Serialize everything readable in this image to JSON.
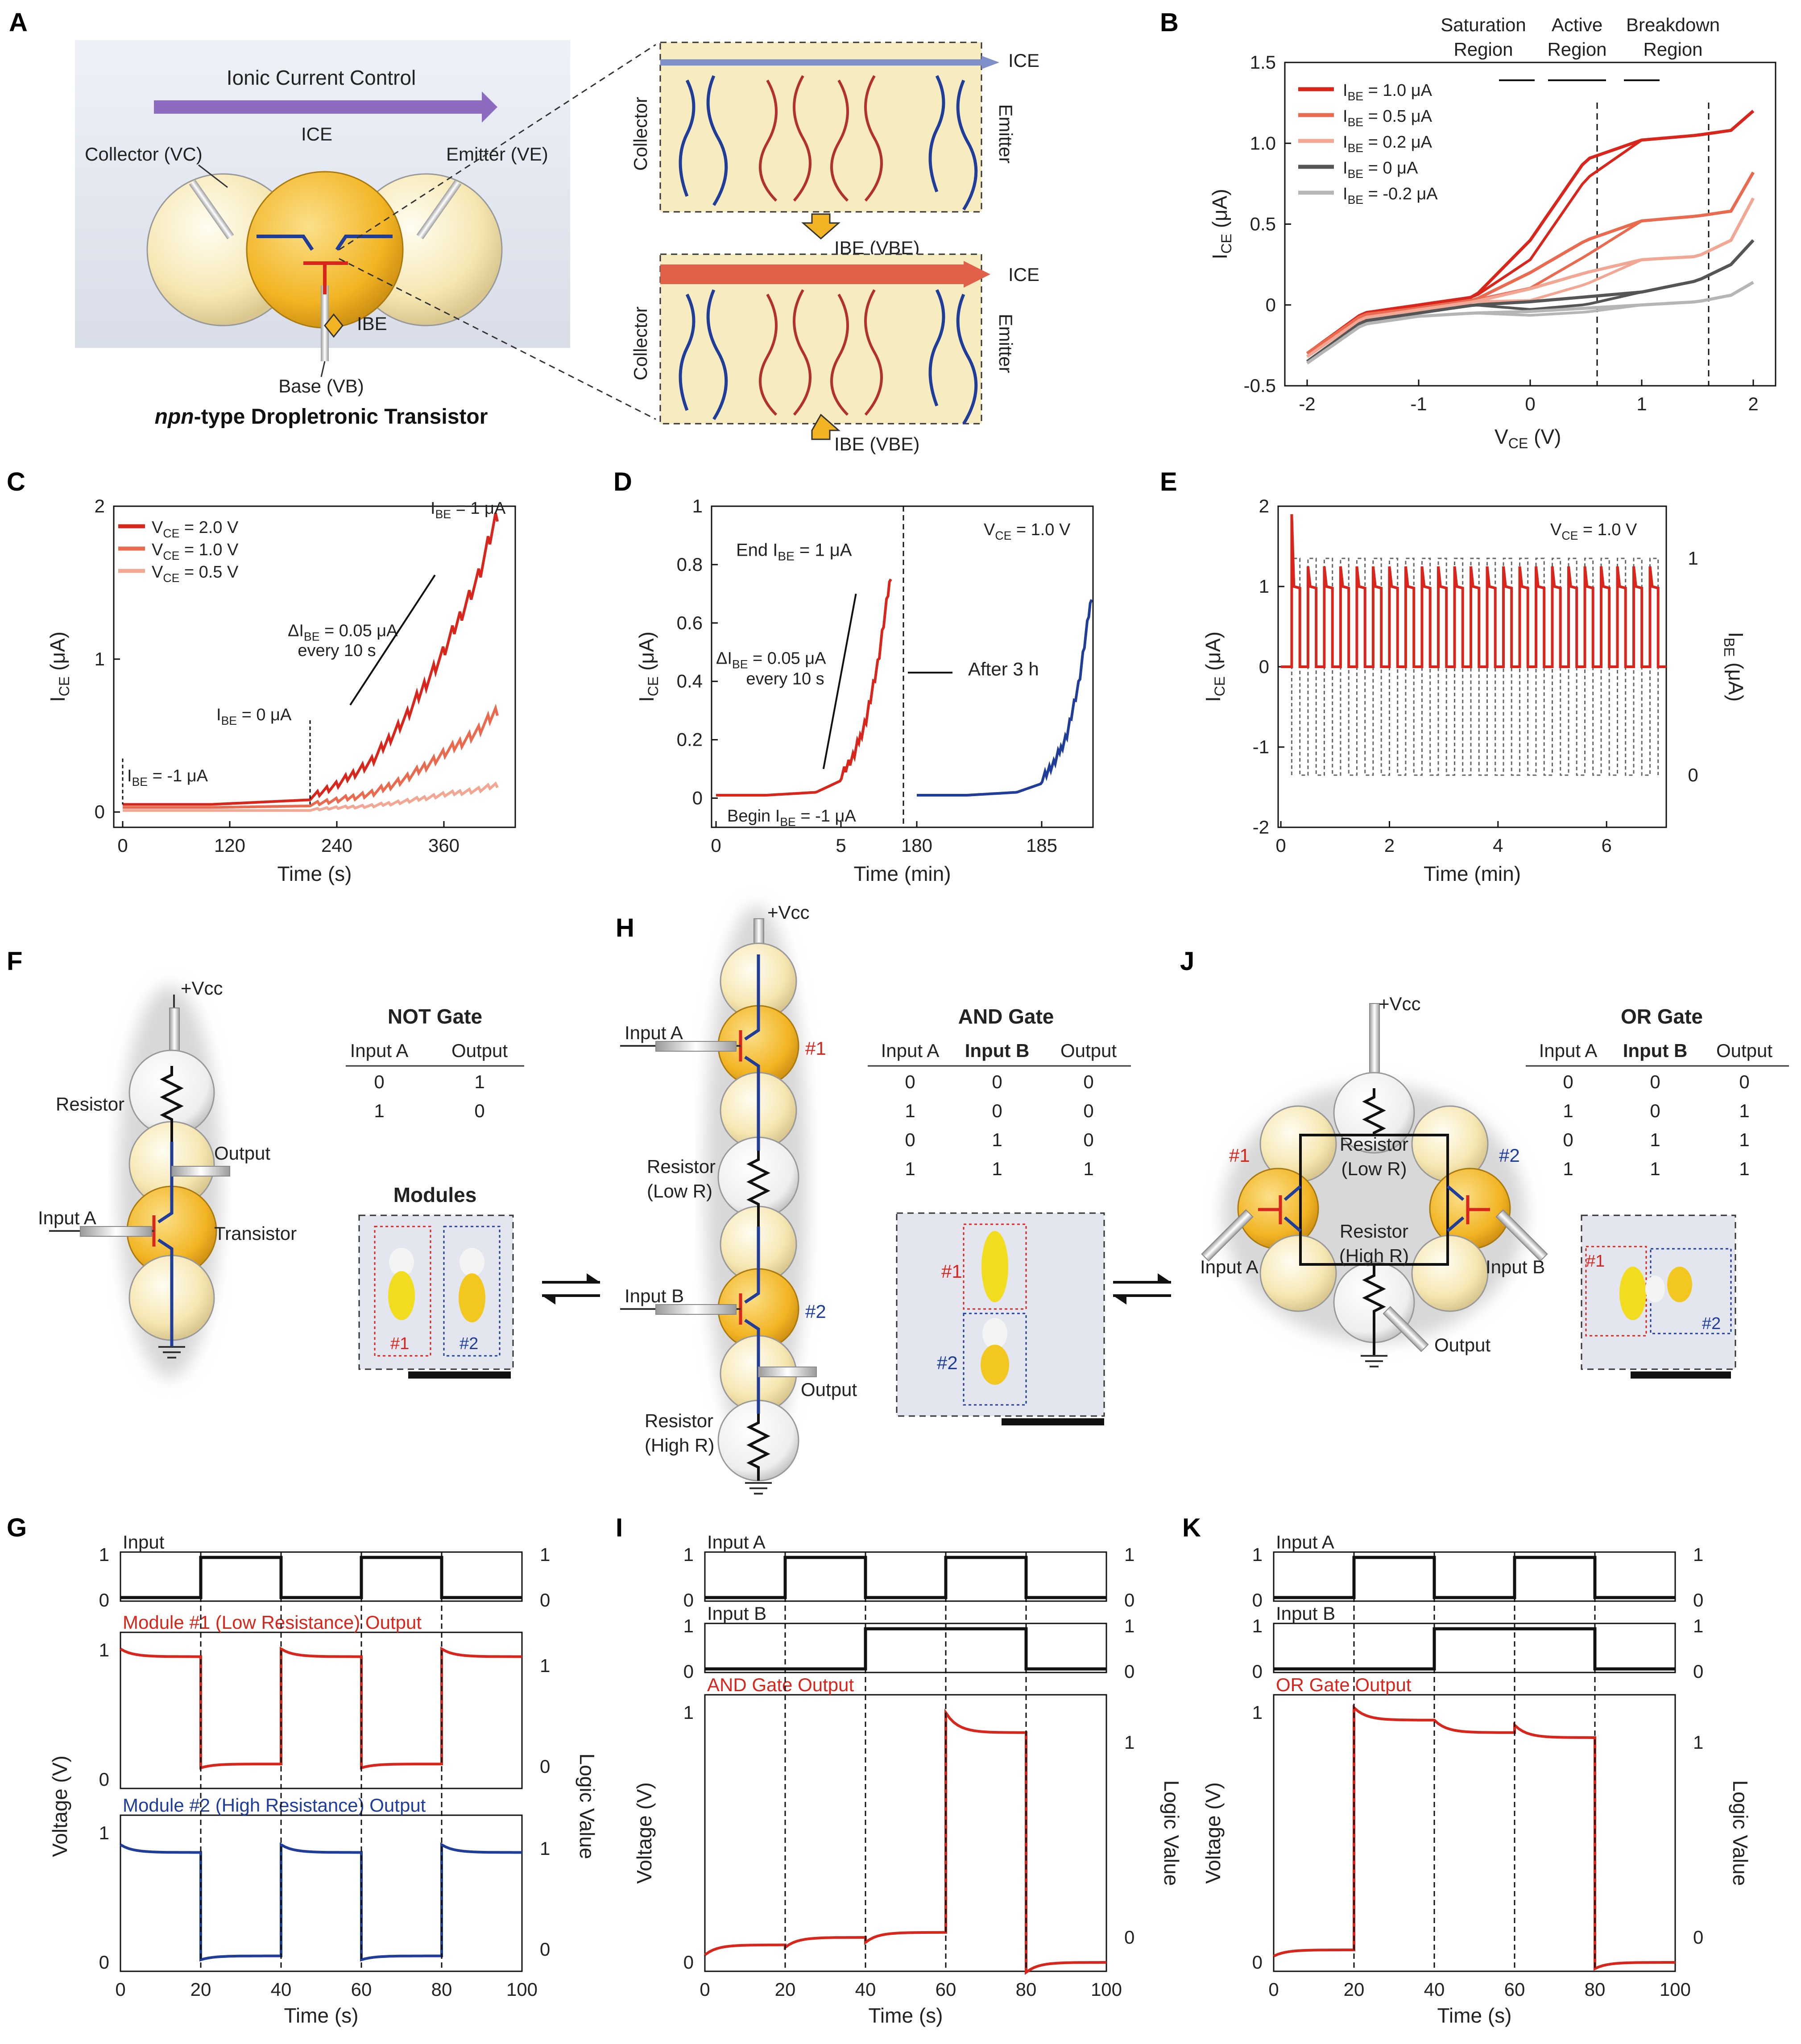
{
  "panel_labels": [
    "A",
    "B",
    "C",
    "D",
    "E",
    "F",
    "G",
    "H",
    "I",
    "J",
    "K"
  ],
  "panelA": {
    "banner": "Ionic Current Control",
    "ice": "ICE",
    "collector": "Collector (VC)",
    "emitter": "Emitter (VE)",
    "ibe": "IBE",
    "base": "Base (VB)",
    "caption_italic": "npn",
    "caption_rest": "-type Dropletronic Transistor",
    "zoom_collector": "Collector",
    "zoom_emitter": "Emitter",
    "zoom_ice": "ICE",
    "zoom_ibe": "IBE (VBE)"
  },
  "colors": {
    "dark_red": "#d9261c",
    "mid_red": "#ea6a4f",
    "light_red": "#f2a794",
    "dark_gray": "#555555",
    "light_gray": "#b5b5b5",
    "blue": "#1f3d99",
    "amber": "#f2b423",
    "cream": "#f7ecc0",
    "panel_gray": "#dfe3ea"
  },
  "chart_data": [
    {
      "panel": "B",
      "type": "line",
      "xlabel": "VCE (V)",
      "ylabel": "ICE (μA)",
      "xlim": [
        -2.2,
        2.2
      ],
      "ylim": [
        -0.5,
        1.5
      ],
      "xticks": [
        "-2",
        "-1",
        "0",
        "1",
        "2"
      ],
      "yticks": [
        "-0.5",
        "0",
        "0.5",
        "1.0",
        "1.5"
      ],
      "regions": [
        "Saturation Region",
        "Active Region",
        "Breakdown Region"
      ],
      "region_bounds": [
        0.6,
        1.6
      ],
      "legend": [
        "IBE = 1.0 μA",
        "IBE = 0.5 μA",
        "IBE = 0.2 μA",
        "IBE = 0 μA",
        "IBE = -0.2 μA"
      ],
      "series": [
        {
          "name": "IBE = 1.0 μA",
          "x": [
            -2,
            -1.5,
            -1,
            -0.5,
            0,
            0.5,
            1,
            1.5,
            1.8,
            2
          ],
          "y": [
            -0.3,
            -0.05,
            0.0,
            0.05,
            0.4,
            0.9,
            1.02,
            1.05,
            1.08,
            1.2
          ]
        },
        {
          "name": "IBE = 0.5 μA",
          "x": [
            -2,
            -1.5,
            -1,
            -0.5,
            0,
            0.5,
            1,
            1.5,
            1.8,
            2
          ],
          "y": [
            -0.3,
            -0.06,
            -0.02,
            0.03,
            0.2,
            0.4,
            0.52,
            0.55,
            0.58,
            0.82
          ]
        },
        {
          "name": "IBE = 0.2 μA",
          "x": [
            -2,
            -1.5,
            -1,
            -0.5,
            0,
            0.5,
            1,
            1.5,
            1.8,
            2
          ],
          "y": [
            -0.32,
            -0.08,
            -0.03,
            0.02,
            0.1,
            0.2,
            0.28,
            0.3,
            0.4,
            0.66
          ]
        },
        {
          "name": "IBE = 0 μA",
          "x": [
            -2,
            -1.5,
            -1,
            -0.5,
            0,
            0.5,
            1,
            1.5,
            1.8,
            2
          ],
          "y": [
            -0.35,
            -0.1,
            -0.05,
            0.0,
            0.02,
            0.05,
            0.08,
            0.15,
            0.25,
            0.4
          ]
        },
        {
          "name": "IBE = -0.2 μA",
          "x": [
            -2,
            -1.5,
            -1,
            -0.5,
            0,
            0.5,
            1,
            1.5,
            1.8,
            2
          ],
          "y": [
            -0.36,
            -0.12,
            -0.07,
            -0.05,
            -0.04,
            -0.02,
            0.0,
            0.02,
            0.06,
            0.14
          ]
        }
      ]
    },
    {
      "panel": "C",
      "type": "line",
      "xlabel": "Time (s)",
      "ylabel": "ICE (μA)",
      "xlim": [
        -10,
        440
      ],
      "ylim": [
        -0.1,
        2.0
      ],
      "xticks": [
        "0",
        "120",
        "240",
        "360"
      ],
      "yticks": [
        "0",
        "1",
        "2"
      ],
      "legend": [
        "VCE = 2.0 V",
        "VCE = 1.0 V",
        "VCE = 0.5 V"
      ],
      "annotations": [
        "IBE = -1 μA",
        "IBE = 0 μA",
        "ΔIBE = 0.05 μA",
        "every 10 s",
        "IBE = 1 μA"
      ],
      "series": [
        {
          "name": "VCE = 2.0 V",
          "x": [
            0,
            100,
            210,
            240,
            280,
            320,
            360,
            400,
            420
          ],
          "y": [
            0.05,
            0.05,
            0.08,
            0.15,
            0.3,
            0.6,
            1.0,
            1.5,
            1.9
          ]
        },
        {
          "name": "VCE = 1.0 V",
          "x": [
            0,
            100,
            210,
            240,
            280,
            320,
            360,
            400,
            420
          ],
          "y": [
            0.03,
            0.03,
            0.04,
            0.06,
            0.1,
            0.2,
            0.35,
            0.5,
            0.63
          ]
        },
        {
          "name": "VCE = 0.5 V",
          "x": [
            0,
            100,
            210,
            240,
            280,
            320,
            360,
            400,
            420
          ],
          "y": [
            0.01,
            0.01,
            0.01,
            0.02,
            0.03,
            0.06,
            0.1,
            0.13,
            0.16
          ]
        }
      ]
    },
    {
      "panel": "D",
      "type": "line",
      "xlabel": "Time (min)",
      "ylabel": "ICE (μA)",
      "ylim": [
        -0.1,
        1.0
      ],
      "xticks": [
        "0",
        "5",
        "180",
        "185"
      ],
      "yticks": [
        "0",
        "0.2",
        "0.4",
        "0.6",
        "0.8",
        "1"
      ],
      "annotations": [
        "VCE = 1.0 V",
        "End IBE = 1 μA",
        "ΔIBE = 0.05 μA",
        "every 10 s",
        "After 3 h",
        "Begin IBE = -1 μA"
      ],
      "series": [
        {
          "name": "before",
          "x": [
            0,
            2,
            4,
            5,
            5.5,
            6,
            6.5,
            7
          ],
          "y": [
            0.01,
            0.01,
            0.02,
            0.06,
            0.12,
            0.25,
            0.45,
            0.75
          ]
        },
        {
          "name": "after 3 h",
          "x": [
            180,
            182,
            184,
            185,
            185.5,
            186,
            186.5,
            187
          ],
          "y": [
            0.01,
            0.01,
            0.02,
            0.05,
            0.1,
            0.2,
            0.38,
            0.68
          ]
        }
      ]
    },
    {
      "panel": "E",
      "type": "line",
      "xlabel": "Time (min)",
      "ylabel": "ICE (μA)",
      "y2label": "IBE (μA)",
      "xlim": [
        -0.05,
        7.1
      ],
      "ylim": [
        -2,
        2
      ],
      "xticks": [
        "0",
        "2",
        "4",
        "6"
      ],
      "yticks": [
        "-2",
        "-1",
        "0",
        "1",
        "2"
      ],
      "y2ticks": [
        "0",
        "1"
      ],
      "annotations": [
        "VCE = 1.0 V"
      ],
      "pulse_period_min": 0.3,
      "pulse_count": 23,
      "spike_first": 1.9,
      "spike_typical": 1.25,
      "plateau": 1.0
    },
    {
      "panel": "G",
      "type": "line",
      "xlabel": "Time (s)",
      "ylabel": "Voltage (V)",
      "y2label": "Logic Value",
      "xlim": [
        0,
        100
      ],
      "xticks": [
        "0",
        "20",
        "40",
        "60",
        "80",
        "100"
      ],
      "titles": [
        "Input",
        "Module #1 (Low Resistance) Output",
        "Module #2 (High Resistance) Output"
      ],
      "input_steps": [
        [
          0,
          0
        ],
        [
          20,
          1
        ],
        [
          40,
          0
        ],
        [
          60,
          1
        ],
        [
          80,
          0
        ],
        [
          100,
          0
        ]
      ],
      "series": [
        {
          "name": "Module #1 (Low Resistance) Output",
          "high": 0.95,
          "low": 0.12
        },
        {
          "name": "Module #2 (High Resistance) Output",
          "high": 0.85,
          "low": 0.05
        }
      ]
    },
    {
      "panel": "I",
      "type": "line",
      "xlabel": "Time (s)",
      "ylabel": "Voltage (V)",
      "y2label": "Logic Value",
      "xlim": [
        0,
        100
      ],
      "xticks": [
        "0",
        "20",
        "40",
        "60",
        "80",
        "100"
      ],
      "titles": [
        "Input A",
        "Input B",
        "AND Gate Output"
      ],
      "inputA_steps": [
        [
          0,
          0
        ],
        [
          20,
          1
        ],
        [
          40,
          0
        ],
        [
          60,
          1
        ],
        [
          80,
          0
        ],
        [
          100,
          0
        ]
      ],
      "inputB_steps": [
        [
          0,
          0
        ],
        [
          40,
          1
        ],
        [
          80,
          0
        ],
        [
          100,
          0
        ]
      ],
      "output_levels": [
        [
          0,
          0.07
        ],
        [
          20,
          0.1
        ],
        [
          40,
          0.12
        ],
        [
          60,
          0.92
        ],
        [
          80,
          0.0
        ],
        [
          100,
          0.08
        ]
      ]
    },
    {
      "panel": "K",
      "type": "line",
      "xlabel": "Time (s)",
      "ylabel": "Voltage (V)",
      "y2label": "Logic Value",
      "xlim": [
        0,
        100
      ],
      "xticks": [
        "0",
        "20",
        "40",
        "60",
        "80",
        "100"
      ],
      "titles": [
        "Input A",
        "Input B",
        "OR Gate Output"
      ],
      "inputA_steps": [
        [
          0,
          0
        ],
        [
          20,
          1
        ],
        [
          40,
          0
        ],
        [
          60,
          1
        ],
        [
          80,
          0
        ],
        [
          100,
          0
        ]
      ],
      "inputB_steps": [
        [
          0,
          0
        ],
        [
          40,
          1
        ],
        [
          80,
          0
        ],
        [
          100,
          0
        ]
      ],
      "output_levels": [
        [
          0,
          0.05
        ],
        [
          20,
          0.97
        ],
        [
          40,
          0.92
        ],
        [
          60,
          0.9
        ],
        [
          80,
          0.0
        ],
        [
          100,
          0.04
        ]
      ]
    }
  ],
  "circuits": {
    "F": {
      "vcc": "+Vcc",
      "resistor": "Resistor",
      "output": "Output",
      "input": "Input A",
      "transistor": "Transistor"
    },
    "H": {
      "vcc": "+Vcc",
      "input_a": "Input A",
      "n1": "#1",
      "res_low": "Resistor",
      "res_low2": "(Low R)",
      "input_b": "Input B",
      "n2": "#2",
      "output": "Output",
      "res_high": "Resistor",
      "res_high2": "(High R)"
    },
    "J": {
      "vcc": "+Vcc",
      "n1": "#1",
      "n2": "#2",
      "res_low": "Resistor",
      "res_low2": "(Low R)",
      "res_high": "Resistor",
      "res_high2": "(High R)",
      "input_a": "Input A",
      "input_b": "Input B",
      "output": "Output"
    }
  },
  "truth_tables": {
    "not": {
      "title": "NOT Gate",
      "headers": [
        "Input A",
        "Output"
      ],
      "rows": [
        [
          "0",
          "1"
        ],
        [
          "1",
          "0"
        ]
      ]
    },
    "and": {
      "title": "AND Gate",
      "headers": [
        "Input A",
        "Input B",
        "Output"
      ],
      "rows": [
        [
          "0",
          "0",
          "0"
        ],
        [
          "1",
          "0",
          "0"
        ],
        [
          "0",
          "1",
          "0"
        ],
        [
          "1",
          "1",
          "1"
        ]
      ]
    },
    "or": {
      "title": "OR Gate",
      "headers": [
        "Input A",
        "Input B",
        "Output"
      ],
      "rows": [
        [
          "0",
          "0",
          "0"
        ],
        [
          "1",
          "0",
          "1"
        ],
        [
          "0",
          "1",
          "1"
        ],
        [
          "1",
          "1",
          "1"
        ]
      ]
    }
  },
  "modules": {
    "title": "Modules",
    "m1": "#1",
    "m2": "#2"
  },
  "tick_vals": {
    "zero": "0",
    "one": "1"
  }
}
